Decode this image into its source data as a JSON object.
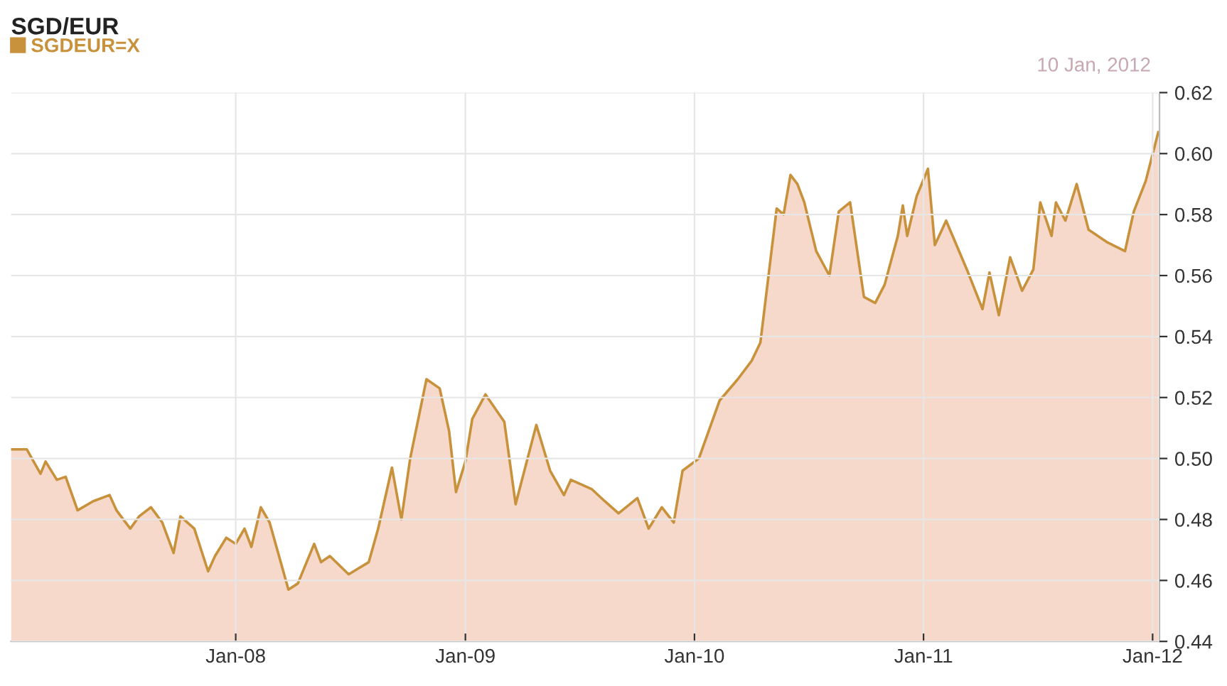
{
  "chart_data": {
    "type": "area",
    "title": "SGD/EUR",
    "annotations": [
      "10 Jan, 2012"
    ],
    "legend": "top left",
    "grid": true,
    "xlim": [
      "2007-01-08",
      "2012-01-12"
    ],
    "xticks": [
      {
        "value": "2008-01-01",
        "label": "Jan-08"
      },
      {
        "value": "2009-01-01",
        "label": "Jan-09"
      },
      {
        "value": "2010-01-01",
        "label": "Jan-10"
      },
      {
        "value": "2011-01-01",
        "label": "Jan-11"
      },
      {
        "value": "2012-01-01",
        "label": "Jan-12"
      }
    ],
    "ylim": [
      0.44,
      0.62
    ],
    "yticks": [
      {
        "value": 0.44,
        "label": "0.44"
      },
      {
        "value": 0.46,
        "label": "0.46"
      },
      {
        "value": 0.48,
        "label": "0.48"
      },
      {
        "value": 0.5,
        "label": "0.50"
      },
      {
        "value": 0.52,
        "label": "0.52"
      },
      {
        "value": 0.54,
        "label": "0.54"
      },
      {
        "value": 0.56,
        "label": "0.56"
      },
      {
        "value": 0.58,
        "label": "0.58"
      },
      {
        "value": 0.6,
        "label": "0.60"
      },
      {
        "value": 0.62,
        "label": "0.62"
      }
    ],
    "series": [
      {
        "name": "SGDEUR=X",
        "color": "#c8913c",
        "x": [
          "2007-01-08",
          "2007-02-02",
          "2007-02-24",
          "2007-03-04",
          "2007-03-22",
          "2007-04-05",
          "2007-04-24",
          "2007-05-19",
          "2007-06-14",
          "2007-06-25",
          "2007-07-17",
          "2007-07-31",
          "2007-08-19",
          "2007-09-06",
          "2007-09-24",
          "2007-10-05",
          "2007-10-27",
          "2007-11-18",
          "2007-11-29",
          "2007-12-17",
          "2008-01-01",
          "2008-01-15",
          "2008-01-26",
          "2008-02-10",
          "2008-02-24",
          "2008-03-25",
          "2008-04-09",
          "2008-05-05",
          "2008-05-16",
          "2008-05-30",
          "2008-06-29",
          "2008-07-31",
          "2008-08-15",
          "2008-09-06",
          "2008-09-21",
          "2008-10-05",
          "2008-10-31",
          "2008-11-21",
          "2008-12-06",
          "2008-12-17",
          "2009-01-01",
          "2009-01-12",
          "2009-02-02",
          "2009-03-04",
          "2009-03-22",
          "2009-04-24",
          "2009-05-16",
          "2009-06-07",
          "2009-06-18",
          "2009-07-21",
          "2009-08-11",
          "2009-09-02",
          "2009-10-02",
          "2009-10-20",
          "2009-11-10",
          "2009-11-29",
          "2009-12-13",
          "2010-01-08",
          "2010-02-10",
          "2010-03-11",
          "2010-04-02",
          "2010-04-16",
          "2010-05-12",
          "2010-05-23",
          "2010-06-03",
          "2010-06-14",
          "2010-06-25",
          "2010-07-14",
          "2010-08-04",
          "2010-08-19",
          "2010-09-06",
          "2010-09-28",
          "2010-10-16",
          "2010-10-31",
          "2010-11-21",
          "2010-11-29",
          "2010-12-06",
          "2010-12-21",
          "2011-01-08",
          "2011-01-19",
          "2011-02-06",
          "2011-03-11",
          "2011-04-05",
          "2011-04-16",
          "2011-05-01",
          "2011-05-19",
          "2011-06-07",
          "2011-06-25",
          "2011-07-06",
          "2011-07-24",
          "2011-07-31",
          "2011-08-15",
          "2011-09-02",
          "2011-09-21",
          "2011-10-20",
          "2011-11-18",
          "2011-12-02",
          "2011-12-21",
          "2012-01-10"
        ],
        "values": [
          0.503,
          0.503,
          0.495,
          0.499,
          0.493,
          0.494,
          0.483,
          0.486,
          0.488,
          0.483,
          0.477,
          0.481,
          0.484,
          0.479,
          0.469,
          0.481,
          0.477,
          0.463,
          0.468,
          0.474,
          0.472,
          0.477,
          0.471,
          0.484,
          0.479,
          0.457,
          0.459,
          0.472,
          0.466,
          0.468,
          0.462,
          0.466,
          0.477,
          0.497,
          0.48,
          0.5,
          0.526,
          0.523,
          0.509,
          0.489,
          0.499,
          0.513,
          0.521,
          0.512,
          0.485,
          0.511,
          0.496,
          0.488,
          0.493,
          0.49,
          0.486,
          0.482,
          0.487,
          0.477,
          0.484,
          0.479,
          0.496,
          0.5,
          0.519,
          0.526,
          0.532,
          0.538,
          0.582,
          0.58,
          0.593,
          0.59,
          0.584,
          0.568,
          0.56,
          0.581,
          0.584,
          0.553,
          0.551,
          0.557,
          0.573,
          0.583,
          0.573,
          0.586,
          0.595,
          0.57,
          0.578,
          0.562,
          0.549,
          0.561,
          0.547,
          0.566,
          0.555,
          0.562,
          0.584,
          0.573,
          0.584,
          0.578,
          0.59,
          0.575,
          0.571,
          0.568,
          0.581,
          0.591,
          0.607
        ]
      }
    ]
  }
}
